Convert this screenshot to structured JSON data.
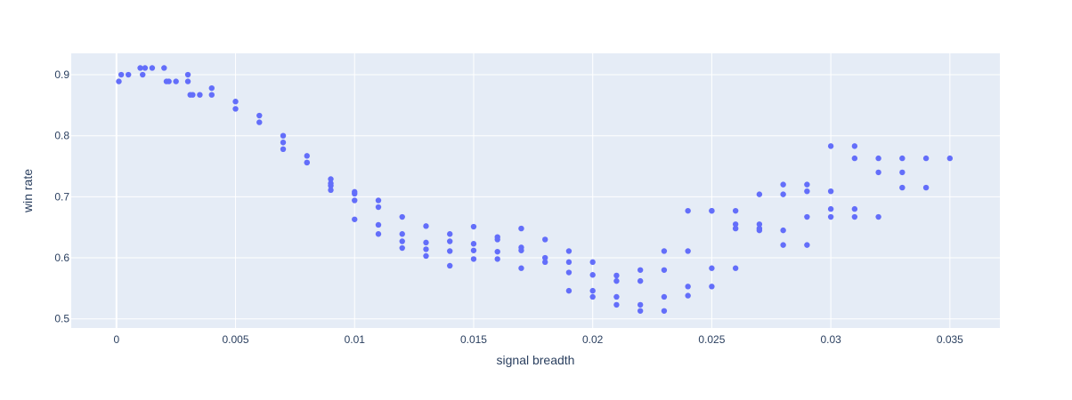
{
  "chart_data": {
    "type": "scatter",
    "title": "",
    "xlabel": "signal breadth",
    "ylabel": "win rate",
    "xlim": [
      -0.0019,
      0.0371
    ],
    "ylim": [
      0.485,
      0.935
    ],
    "xticks": [
      0,
      0.005,
      0.01,
      0.015,
      0.02,
      0.025,
      0.03,
      0.035
    ],
    "xtick_labels": [
      "0",
      "0.005",
      "0.01",
      "0.015",
      "0.02",
      "0.025",
      "0.03",
      "0.035"
    ],
    "yticks": [
      0.5,
      0.6,
      0.7,
      0.8,
      0.9
    ],
    "ytick_labels": [
      "0.5",
      "0.6",
      "0.7",
      "0.8",
      "0.9"
    ],
    "grid": true,
    "legend": "none",
    "colors": {
      "marker": "#636efa",
      "plot_bg": "#e5ecf6",
      "grid": "#ffffff",
      "text": "#2a3f5f"
    },
    "series": [
      {
        "points": [
          [
            0.0001,
            0.889
          ],
          [
            0.0002,
            0.9
          ],
          [
            0.0005,
            0.9
          ],
          [
            0.001,
            0.911
          ],
          [
            0.0011,
            0.9
          ],
          [
            0.0012,
            0.911
          ],
          [
            0.0015,
            0.911
          ],
          [
            0.002,
            0.911
          ],
          [
            0.0021,
            0.889
          ],
          [
            0.0022,
            0.889
          ],
          [
            0.0025,
            0.889
          ],
          [
            0.003,
            0.9
          ],
          [
            0.003,
            0.889
          ],
          [
            0.0031,
            0.867
          ],
          [
            0.0032,
            0.867
          ],
          [
            0.0035,
            0.867
          ],
          [
            0.004,
            0.878
          ],
          [
            0.004,
            0.867
          ],
          [
            0.005,
            0.856
          ],
          [
            0.005,
            0.844
          ],
          [
            0.006,
            0.833
          ],
          [
            0.006,
            0.822
          ],
          [
            0.007,
            0.8
          ],
          [
            0.007,
            0.789
          ],
          [
            0.007,
            0.778
          ],
          [
            0.008,
            0.767
          ],
          [
            0.008,
            0.756
          ],
          [
            0.008,
            0.756
          ],
          [
            0.009,
            0.729
          ],
          [
            0.009,
            0.722
          ],
          [
            0.009,
            0.718
          ],
          [
            0.009,
            0.711
          ],
          [
            0.01,
            0.708
          ],
          [
            0.01,
            0.705
          ],
          [
            0.01,
            0.694
          ],
          [
            0.01,
            0.663
          ],
          [
            0.011,
            0.694
          ],
          [
            0.011,
            0.683
          ],
          [
            0.011,
            0.654
          ],
          [
            0.011,
            0.639
          ],
          [
            0.012,
            0.667
          ],
          [
            0.012,
            0.639
          ],
          [
            0.012,
            0.627
          ],
          [
            0.012,
            0.616
          ],
          [
            0.013,
            0.652
          ],
          [
            0.013,
            0.625
          ],
          [
            0.013,
            0.614
          ],
          [
            0.013,
            0.603
          ],
          [
            0.014,
            0.639
          ],
          [
            0.014,
            0.627
          ],
          [
            0.014,
            0.611
          ],
          [
            0.014,
            0.587
          ],
          [
            0.015,
            0.651
          ],
          [
            0.015,
            0.623
          ],
          [
            0.015,
            0.612
          ],
          [
            0.015,
            0.598
          ],
          [
            0.016,
            0.634
          ],
          [
            0.016,
            0.63
          ],
          [
            0.016,
            0.61
          ],
          [
            0.016,
            0.598
          ],
          [
            0.017,
            0.648
          ],
          [
            0.017,
            0.617
          ],
          [
            0.017,
            0.612
          ],
          [
            0.017,
            0.583
          ],
          [
            0.018,
            0.63
          ],
          [
            0.018,
            0.6
          ],
          [
            0.018,
            0.593
          ],
          [
            0.019,
            0.611
          ],
          [
            0.019,
            0.593
          ],
          [
            0.019,
            0.576
          ],
          [
            0.019,
            0.546
          ],
          [
            0.02,
            0.593
          ],
          [
            0.02,
            0.572
          ],
          [
            0.02,
            0.546
          ],
          [
            0.02,
            0.536
          ],
          [
            0.021,
            0.571
          ],
          [
            0.021,
            0.562
          ],
          [
            0.021,
            0.536
          ],
          [
            0.021,
            0.523
          ],
          [
            0.022,
            0.58
          ],
          [
            0.022,
            0.562
          ],
          [
            0.022,
            0.523
          ],
          [
            0.022,
            0.513
          ],
          [
            0.023,
            0.611
          ],
          [
            0.023,
            0.58
          ],
          [
            0.023,
            0.536
          ],
          [
            0.023,
            0.513
          ],
          [
            0.024,
            0.677
          ],
          [
            0.024,
            0.611
          ],
          [
            0.024,
            0.553
          ],
          [
            0.024,
            0.538
          ],
          [
            0.025,
            0.677
          ],
          [
            0.025,
            0.677
          ],
          [
            0.025,
            0.583
          ],
          [
            0.025,
            0.553
          ],
          [
            0.026,
            0.677
          ],
          [
            0.026,
            0.655
          ],
          [
            0.026,
            0.648
          ],
          [
            0.026,
            0.583
          ],
          [
            0.027,
            0.704
          ],
          [
            0.027,
            0.655
          ],
          [
            0.027,
            0.648
          ],
          [
            0.027,
            0.645
          ],
          [
            0.028,
            0.72
          ],
          [
            0.028,
            0.704
          ],
          [
            0.028,
            0.645
          ],
          [
            0.028,
            0.621
          ],
          [
            0.029,
            0.72
          ],
          [
            0.029,
            0.709
          ],
          [
            0.029,
            0.667
          ],
          [
            0.029,
            0.621
          ],
          [
            0.03,
            0.783
          ],
          [
            0.03,
            0.709
          ],
          [
            0.03,
            0.68
          ],
          [
            0.03,
            0.667
          ],
          [
            0.031,
            0.783
          ],
          [
            0.031,
            0.763
          ],
          [
            0.031,
            0.68
          ],
          [
            0.031,
            0.667
          ],
          [
            0.032,
            0.763
          ],
          [
            0.032,
            0.74
          ],
          [
            0.032,
            0.667
          ],
          [
            0.033,
            0.763
          ],
          [
            0.033,
            0.74
          ],
          [
            0.033,
            0.715
          ],
          [
            0.034,
            0.763
          ],
          [
            0.034,
            0.715
          ],
          [
            0.035,
            0.763
          ]
        ]
      }
    ]
  }
}
